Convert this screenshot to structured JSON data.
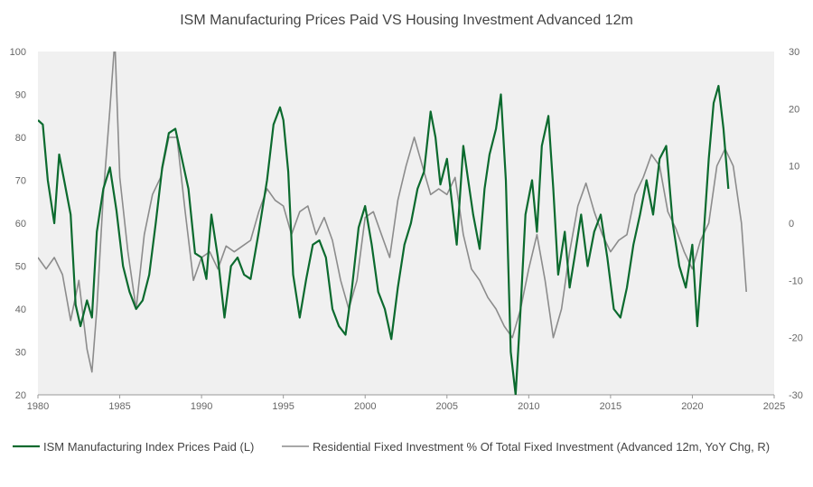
{
  "chart_data": {
    "type": "line",
    "title": "ISM Manufacturing Prices Paid VS Housing Investment Advanced 12m",
    "xlabel": "",
    "ylabel_left": "",
    "ylabel_right": "",
    "xlim": [
      1980,
      2025
    ],
    "ylim_left": [
      20,
      100
    ],
    "ylim_right": [
      -30,
      30
    ],
    "x_ticks": [
      1980,
      1985,
      1990,
      1995,
      2000,
      2005,
      2010,
      2015,
      2020,
      2025
    ],
    "y_ticks_left": [
      20,
      30,
      40,
      50,
      60,
      70,
      80,
      90,
      100
    ],
    "y_ticks_right": [
      -30,
      -20,
      -10,
      0,
      10,
      20,
      30
    ],
    "grid": false,
    "background": "#f0f0f0",
    "legend_position": "bottom",
    "series": [
      {
        "name": "ISM Manufacturing Index Prices Paid (L)",
        "axis": "left",
        "color": "#0b6a2e",
        "x": [
          1980.0,
          1980.3,
          1980.6,
          1981.0,
          1981.3,
          1981.6,
          1982.0,
          1982.3,
          1982.6,
          1983.0,
          1983.3,
          1983.6,
          1984.0,
          1984.4,
          1984.8,
          1985.2,
          1985.6,
          1986.0,
          1986.4,
          1986.8,
          1987.2,
          1987.6,
          1988.0,
          1988.4,
          1988.8,
          1989.2,
          1989.6,
          1990.0,
          1990.3,
          1990.6,
          1991.0,
          1991.4,
          1991.8,
          1992.2,
          1992.6,
          1993.0,
          1993.5,
          1994.0,
          1994.4,
          1994.8,
          1995.0,
          1995.3,
          1995.6,
          1996.0,
          1996.4,
          1996.8,
          1997.2,
          1997.6,
          1998.0,
          1998.4,
          1998.8,
          1999.2,
          1999.6,
          2000.0,
          2000.4,
          2000.8,
          2001.2,
          2001.6,
          2002.0,
          2002.4,
          2002.8,
          2003.2,
          2003.6,
          2004.0,
          2004.3,
          2004.6,
          2005.0,
          2005.3,
          2005.6,
          2006.0,
          2006.3,
          2006.6,
          2007.0,
          2007.3,
          2007.6,
          2008.0,
          2008.3,
          2008.6,
          2008.9,
          2009.2,
          2009.5,
          2009.8,
          2010.2,
          2010.5,
          2010.8,
          2011.2,
          2011.5,
          2011.8,
          2012.2,
          2012.5,
          2012.8,
          2013.2,
          2013.6,
          2014.0,
          2014.4,
          2014.8,
          2015.2,
          2015.6,
          2016.0,
          2016.4,
          2016.8,
          2017.2,
          2017.6,
          2018.0,
          2018.4,
          2018.8,
          2019.2,
          2019.6,
          2020.0,
          2020.3,
          2020.6,
          2021.0,
          2021.3,
          2021.6,
          2021.9,
          2022.2
        ],
        "values": [
          84,
          83,
          70,
          60,
          76,
          70,
          62,
          41,
          36,
          42,
          38,
          58,
          68,
          73,
          63,
          50,
          44,
          40,
          42,
          48,
          60,
          73,
          81,
          82,
          75,
          68,
          53,
          52,
          47,
          62,
          52,
          38,
          50,
          52,
          48,
          47,
          58,
          70,
          83,
          87,
          84,
          72,
          48,
          38,
          47,
          55,
          56,
          52,
          40,
          36,
          34,
          45,
          59,
          64,
          55,
          44,
          40,
          33,
          45,
          55,
          60,
          68,
          72,
          86,
          80,
          69,
          75,
          65,
          55,
          78,
          70,
          62,
          54,
          68,
          76,
          82,
          90,
          70,
          30,
          20,
          40,
          62,
          70,
          58,
          78,
          85,
          68,
          48,
          58,
          45,
          52,
          62,
          50,
          58,
          62,
          52,
          40,
          38,
          45,
          55,
          62,
          70,
          62,
          75,
          78,
          60,
          50,
          45,
          55,
          36,
          52,
          75,
          88,
          92,
          82,
          68
        ]
      },
      {
        "name": "Residential Fixed Investment % Of Total Fixed Investment (Advanced 12m, YoY Chg, R)",
        "axis": "right",
        "color": "#8c8c8c",
        "x": [
          1980.0,
          1980.5,
          1981.0,
          1981.5,
          1982.0,
          1982.5,
          1983.0,
          1983.3,
          1983.6,
          1984.0,
          1984.4,
          1984.7,
          1985.0,
          1985.5,
          1986.0,
          1986.5,
          1987.0,
          1987.5,
          1988.0,
          1988.5,
          1989.0,
          1989.5,
          1990.0,
          1990.5,
          1991.0,
          1991.5,
          1992.0,
          1992.5,
          1993.0,
          1993.5,
          1994.0,
          1994.5,
          1995.0,
          1995.5,
          1996.0,
          1996.5,
          1997.0,
          1997.5,
          1998.0,
          1998.5,
          1999.0,
          1999.5,
          2000.0,
          2000.5,
          2001.0,
          2001.5,
          2002.0,
          2002.5,
          2003.0,
          2003.5,
          2004.0,
          2004.5,
          2005.0,
          2005.5,
          2006.0,
          2006.5,
          2007.0,
          2007.5,
          2008.0,
          2008.5,
          2009.0,
          2009.5,
          2010.0,
          2010.5,
          2011.0,
          2011.5,
          2012.0,
          2012.5,
          2013.0,
          2013.5,
          2014.0,
          2014.5,
          2015.0,
          2015.5,
          2016.0,
          2016.5,
          2017.0,
          2017.5,
          2018.0,
          2018.5,
          2019.0,
          2019.5,
          2020.0,
          2020.5,
          2021.0,
          2021.5,
          2022.0,
          2022.5,
          2023.0,
          2023.3
        ],
        "values": [
          -6,
          -8,
          -6,
          -9,
          -17,
          -10,
          -22,
          -26,
          -15,
          5,
          20,
          32,
          8,
          -5,
          -15,
          -2,
          5,
          8,
          15,
          15,
          2,
          -10,
          -6,
          -5,
          -8,
          -4,
          -5,
          -4,
          -3,
          2,
          6,
          4,
          3,
          -2,
          2,
          3,
          -2,
          1,
          -3,
          -10,
          -15,
          -10,
          1,
          2,
          -2,
          -6,
          4,
          10,
          15,
          10,
          5,
          6,
          5,
          8,
          -2,
          -8,
          -10,
          -13,
          -15,
          -18,
          -20,
          -15,
          -8,
          -2,
          -10,
          -20,
          -15,
          -5,
          3,
          7,
          2,
          -2,
          -5,
          -3,
          -2,
          5,
          8,
          12,
          10,
          2,
          -1,
          -5,
          -8,
          -3,
          0,
          10,
          13,
          10,
          0,
          -12
        ]
      }
    ]
  },
  "legend": {
    "items": [
      {
        "label": "ISM Manufacturing Index Prices Paid (L)",
        "color": "#0b6a2e"
      },
      {
        "label": "Residential Fixed Investment % Of Total Fixed Investment (Advanced 12m, YoY Chg, R)",
        "color": "#8c8c8c"
      }
    ]
  }
}
